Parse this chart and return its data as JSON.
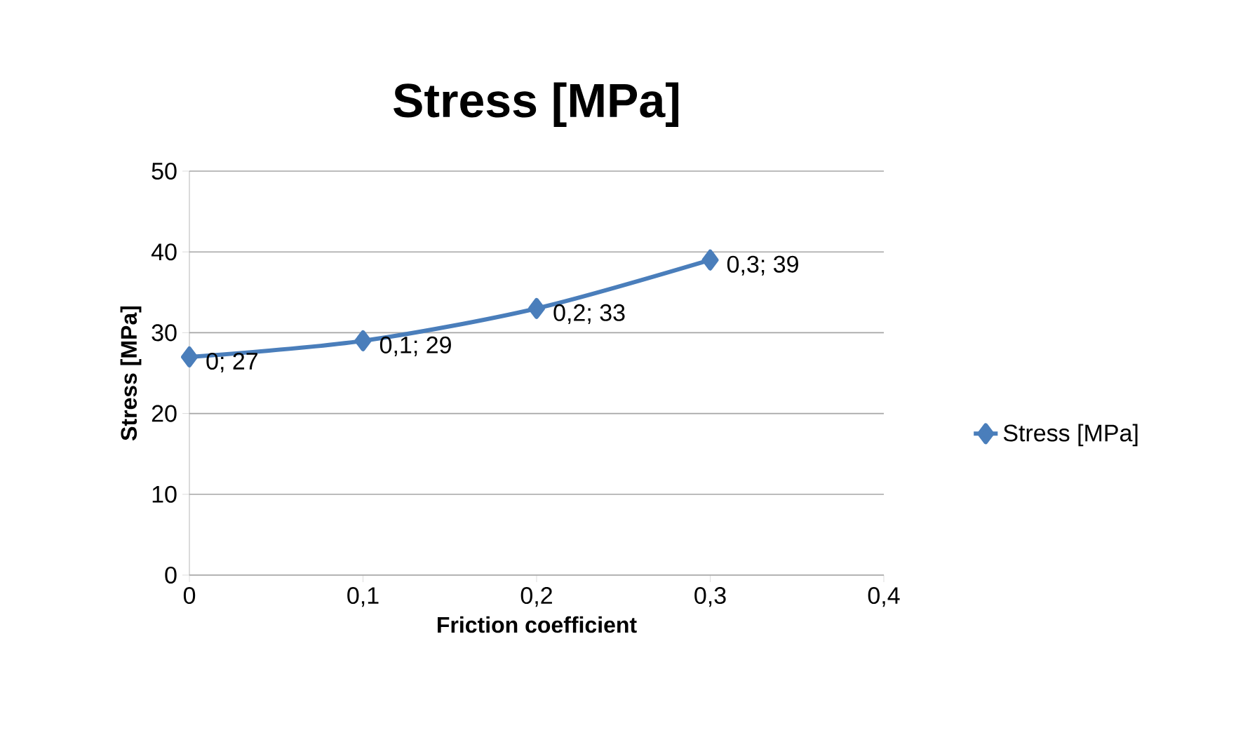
{
  "chart_data": {
    "type": "line",
    "title": "Stress [MPa]",
    "xlabel": "Friction coefficient",
    "ylabel": "Stress [MPa]",
    "x": [
      0,
      0.1,
      0.2,
      0.3
    ],
    "series": [
      {
        "name": "Stress [MPa]",
        "color": "#4a7ebb",
        "values": [
          27,
          29,
          33,
          39
        ],
        "value_labels": [
          "0; 27",
          "0,1; 29",
          "0,2; 33",
          "0,3; 39"
        ]
      }
    ],
    "xlim": [
      0,
      0.4
    ],
    "xticks": [
      0,
      {
        "value": 0.1,
        "label": "0,1"
      },
      {
        "value": 0.2,
        "label": "0,2"
      },
      {
        "value": 0.3,
        "label": "0,3"
      },
      {
        "value": 0.4,
        "label": "0,4"
      }
    ],
    "ylim": [
      0,
      50
    ],
    "yticks": [
      0,
      10,
      20,
      30,
      40,
      50
    ],
    "grid": "y",
    "legend": "right",
    "marker": "diamond",
    "line_style": "solid"
  }
}
